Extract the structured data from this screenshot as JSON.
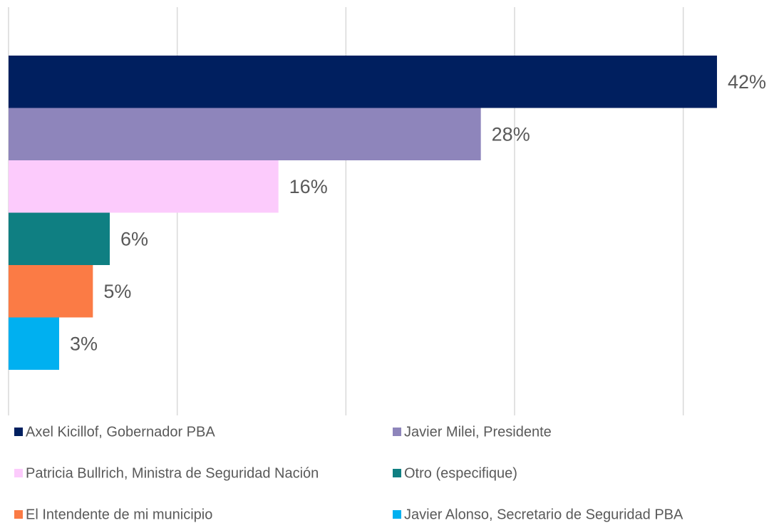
{
  "chart_data": {
    "type": "hbar",
    "categories": [
      "Axel Kicillof, Gobernador PBA",
      "Javier Milei, Presidente",
      "Patricia Bullrich, Ministra de Seguridad Nación",
      "Otro (especifique)",
      "El Intendente de mi municipio",
      "Javier Alonso, Secretario de Seguridad PBA"
    ],
    "values": [
      42,
      28,
      16,
      6,
      5,
      3
    ],
    "value_labels": [
      "42%",
      "28%",
      "16%",
      "6%",
      "5%",
      "3%"
    ],
    "colors": [
      "#001f5f",
      "#8e85bb",
      "#fccbfc",
      "#0f7f82",
      "#fb7b45",
      "#00b0f0"
    ],
    "xlim": [
      0,
      45
    ],
    "xticks": [
      0,
      10,
      20,
      30,
      40
    ],
    "grid": true,
    "legend": "bottom"
  }
}
